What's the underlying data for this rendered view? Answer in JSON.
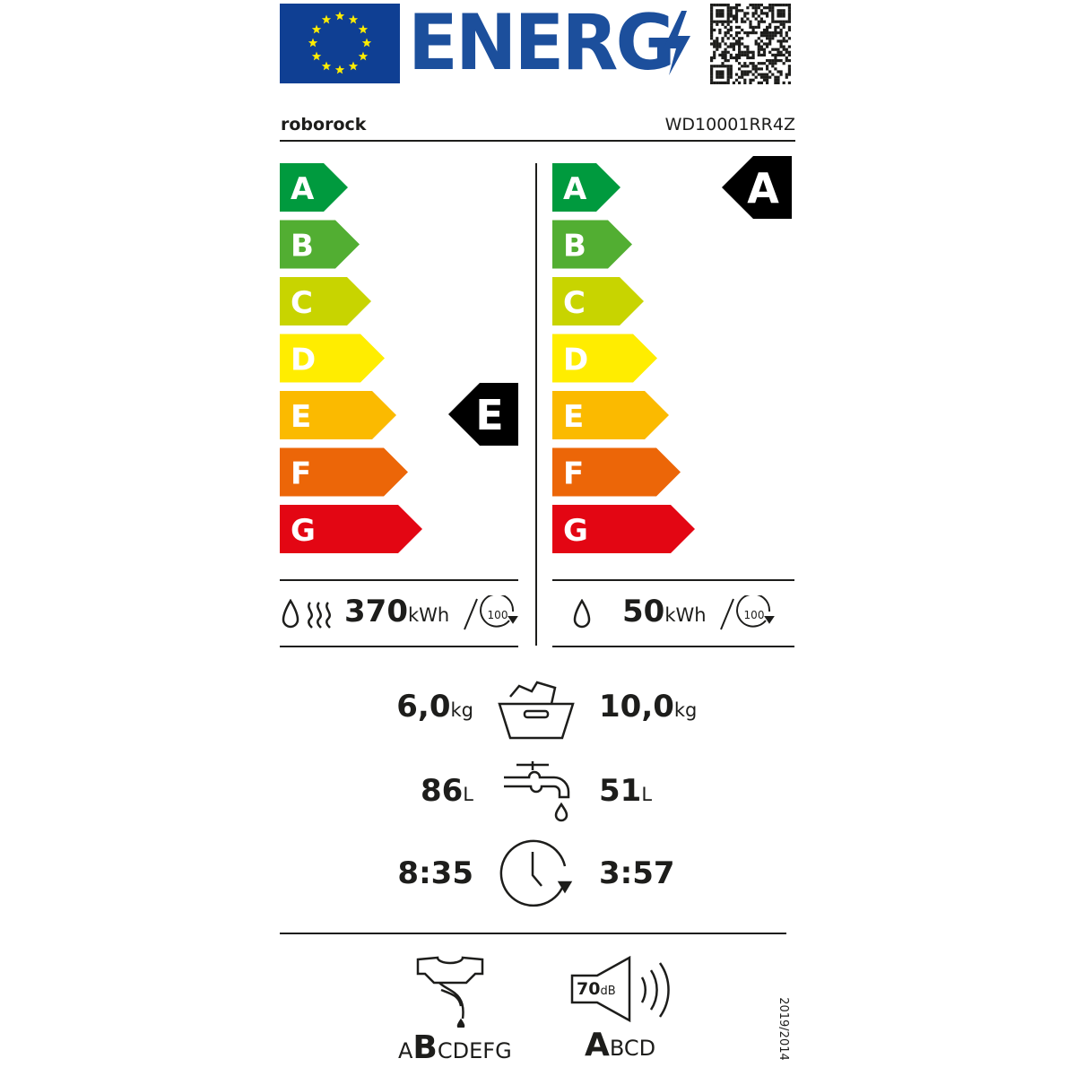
{
  "header": {
    "logo_text": "ENERG",
    "qr_icon": "qr-code-icon",
    "flag_icon": "eu-flag-icon"
  },
  "supplier": "roborock",
  "model": "WD10001RR4Z",
  "scale": {
    "classes": [
      "A",
      "B",
      "C",
      "D",
      "E",
      "F",
      "G"
    ],
    "colors": [
      "#009a3e",
      "#52ae32",
      "#c8d400",
      "#ffed00",
      "#fbba00",
      "#ec6608",
      "#e30613"
    ]
  },
  "wash_dry": {
    "class": "E",
    "energy": "370",
    "unit": "kWh",
    "cycles": "100"
  },
  "wash": {
    "class": "A",
    "energy": "50",
    "unit": "kWh",
    "cycles": "100"
  },
  "capacity": {
    "wash_dry": "6,0",
    "wash": "10,0",
    "unit": "kg"
  },
  "water": {
    "wash_dry": "86",
    "wash": "51",
    "unit": "L"
  },
  "duration": {
    "wash_dry": "8:35",
    "wash": "3:57"
  },
  "spin_class": {
    "first": "A",
    "selected": "B",
    "rest": "CDEFG"
  },
  "noise": {
    "value": "70",
    "unit": "dB",
    "selected": "A",
    "rest": "BCD"
  },
  "regulation": "2019/2014"
}
